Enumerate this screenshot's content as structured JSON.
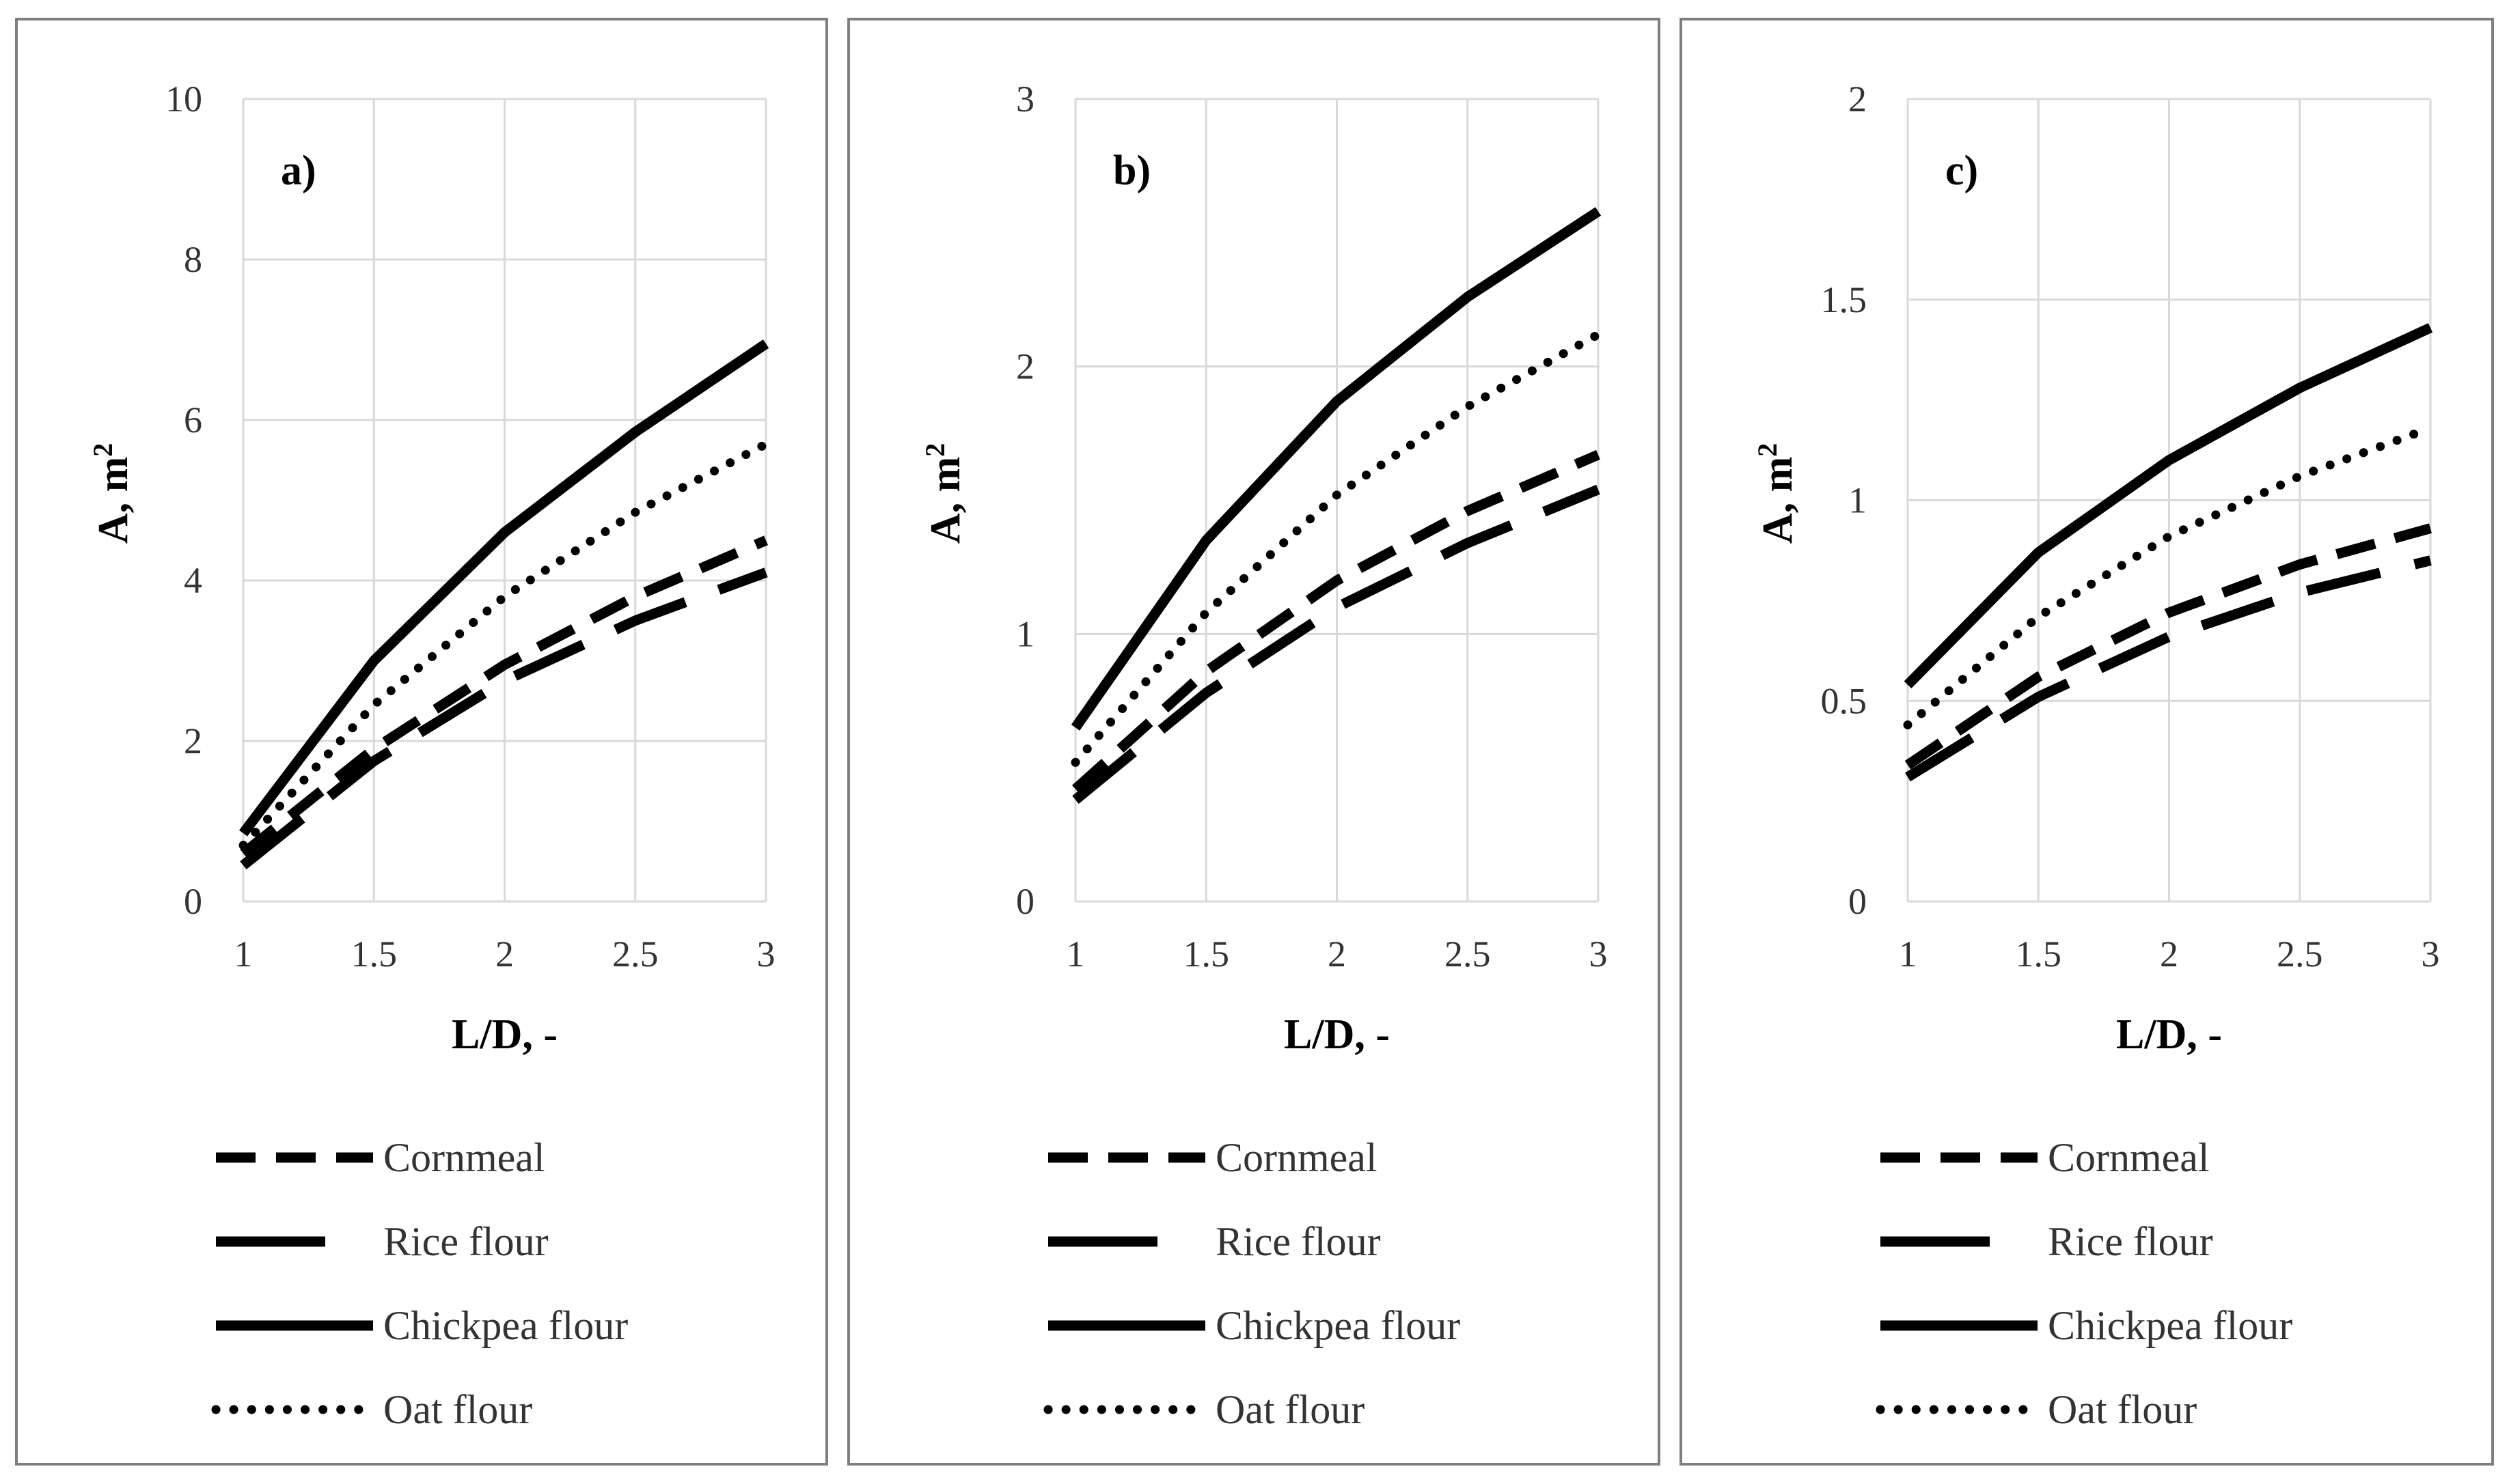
{
  "chart_data": [
    {
      "type": "line",
      "panel_label": "a)",
      "xlabel": "L/D, -",
      "ylabel": "A, m",
      "ylabel_sup": "2",
      "xlim": [
        1,
        3
      ],
      "ylim": [
        0,
        10
      ],
      "x_ticks": [
        "1",
        "1.5",
        "2",
        "2.5",
        "3"
      ],
      "y_ticks": [
        "0",
        "2",
        "4",
        "6",
        "8",
        "10"
      ],
      "x": [
        1.0,
        1.5,
        2.0,
        2.5,
        3.0
      ],
      "series": [
        {
          "name": "Cornmeal",
          "style": "dashed",
          "values": [
            0.6,
            1.9,
            2.95,
            3.8,
            4.5
          ]
        },
        {
          "name": "Rice flour",
          "style": "longdash",
          "values": [
            0.45,
            1.75,
            2.75,
            3.5,
            4.1
          ]
        },
        {
          "name": "Chickpea flour",
          "style": "solid",
          "values": [
            0.85,
            3.0,
            4.6,
            5.85,
            6.95
          ]
        },
        {
          "name": "Oat flour",
          "style": "dotted",
          "values": [
            0.7,
            2.45,
            3.8,
            4.85,
            5.7
          ]
        }
      ]
    },
    {
      "type": "line",
      "panel_label": "b)",
      "xlabel": "L/D, -",
      "ylabel": "A, m",
      "ylabel_sup": "2",
      "xlim": [
        1,
        3
      ],
      "ylim": [
        0,
        3
      ],
      "x_ticks": [
        "1",
        "1.5",
        "2",
        "2.5",
        "3"
      ],
      "y_ticks": [
        "0",
        "1",
        "2",
        "3"
      ],
      "x": [
        1.0,
        1.5,
        2.0,
        2.5,
        3.0
      ],
      "series": [
        {
          "name": "Cornmeal",
          "style": "dashed",
          "values": [
            0.42,
            0.86,
            1.2,
            1.46,
            1.67
          ]
        },
        {
          "name": "Rice flour",
          "style": "longdash",
          "values": [
            0.38,
            0.78,
            1.1,
            1.34,
            1.54
          ]
        },
        {
          "name": "Chickpea flour",
          "style": "solid",
          "values": [
            0.65,
            1.35,
            1.87,
            2.26,
            2.58
          ]
        },
        {
          "name": "Oat flour",
          "style": "dotted",
          "values": [
            0.52,
            1.08,
            1.52,
            1.85,
            2.12
          ]
        }
      ]
    },
    {
      "type": "line",
      "panel_label": "c)",
      "xlabel": "L/D, -",
      "ylabel": "A, m",
      "ylabel_sup": "2",
      "xlim": [
        1,
        3
      ],
      "ylim": [
        0,
        2
      ],
      "x_ticks": [
        "1",
        "1.5",
        "2",
        "2.5",
        "3"
      ],
      "y_ticks": [
        "0",
        "0.5",
        "1",
        "1.5",
        "2"
      ],
      "x": [
        1.0,
        1.5,
        2.0,
        2.5,
        3.0
      ],
      "series": [
        {
          "name": "Cornmeal",
          "style": "dashed",
          "values": [
            0.34,
            0.56,
            0.72,
            0.84,
            0.93
          ]
        },
        {
          "name": "Rice flour",
          "style": "longdash",
          "values": [
            0.31,
            0.51,
            0.66,
            0.77,
            0.85
          ]
        },
        {
          "name": "Chickpea flour",
          "style": "solid",
          "values": [
            0.54,
            0.87,
            1.1,
            1.28,
            1.43
          ]
        },
        {
          "name": "Oat flour",
          "style": "dotted",
          "values": [
            0.44,
            0.71,
            0.91,
            1.06,
            1.18
          ]
        }
      ]
    }
  ],
  "colors": {
    "line": "#000000",
    "grid": "#d9d9d9",
    "border": "#7f7f7f",
    "text": "#333333"
  }
}
